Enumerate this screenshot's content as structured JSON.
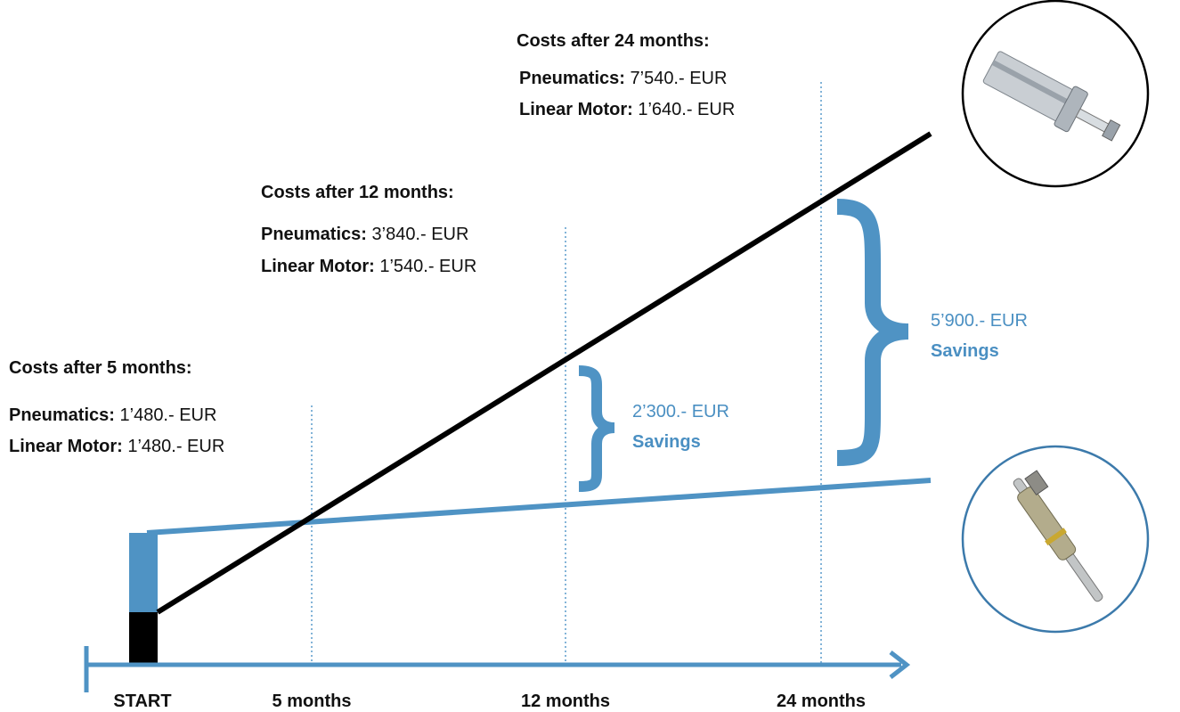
{
  "blocks": [
    {
      "title": "Costs after 24 months:",
      "rows": [
        {
          "label": "Pneumatics:",
          "value": "7’540.- EUR"
        },
        {
          "label": "Linear Motor:",
          "value": "1’640.- EUR"
        }
      ]
    },
    {
      "title": "Costs after 12 months:",
      "rows": [
        {
          "label": "Pneumatics:",
          "value": "3’840.- EUR"
        },
        {
          "label": "Linear Motor:",
          "value": "1’540.- EUR"
        }
      ]
    },
    {
      "title": "Costs after 5 months:",
      "rows": [
        {
          "label": "Pneumatics:",
          "value": "1’480.- EUR"
        },
        {
          "label": "Linear Motor:",
          "value": "1’480.- EUR"
        }
      ]
    }
  ],
  "savings": [
    {
      "amount": "2’300.- EUR",
      "label": "Savings"
    },
    {
      "amount": "5’900.- EUR",
      "label": "Savings"
    }
  ],
  "axis": [
    "START",
    "5 months",
    "12 months",
    "24 months"
  ]
}
